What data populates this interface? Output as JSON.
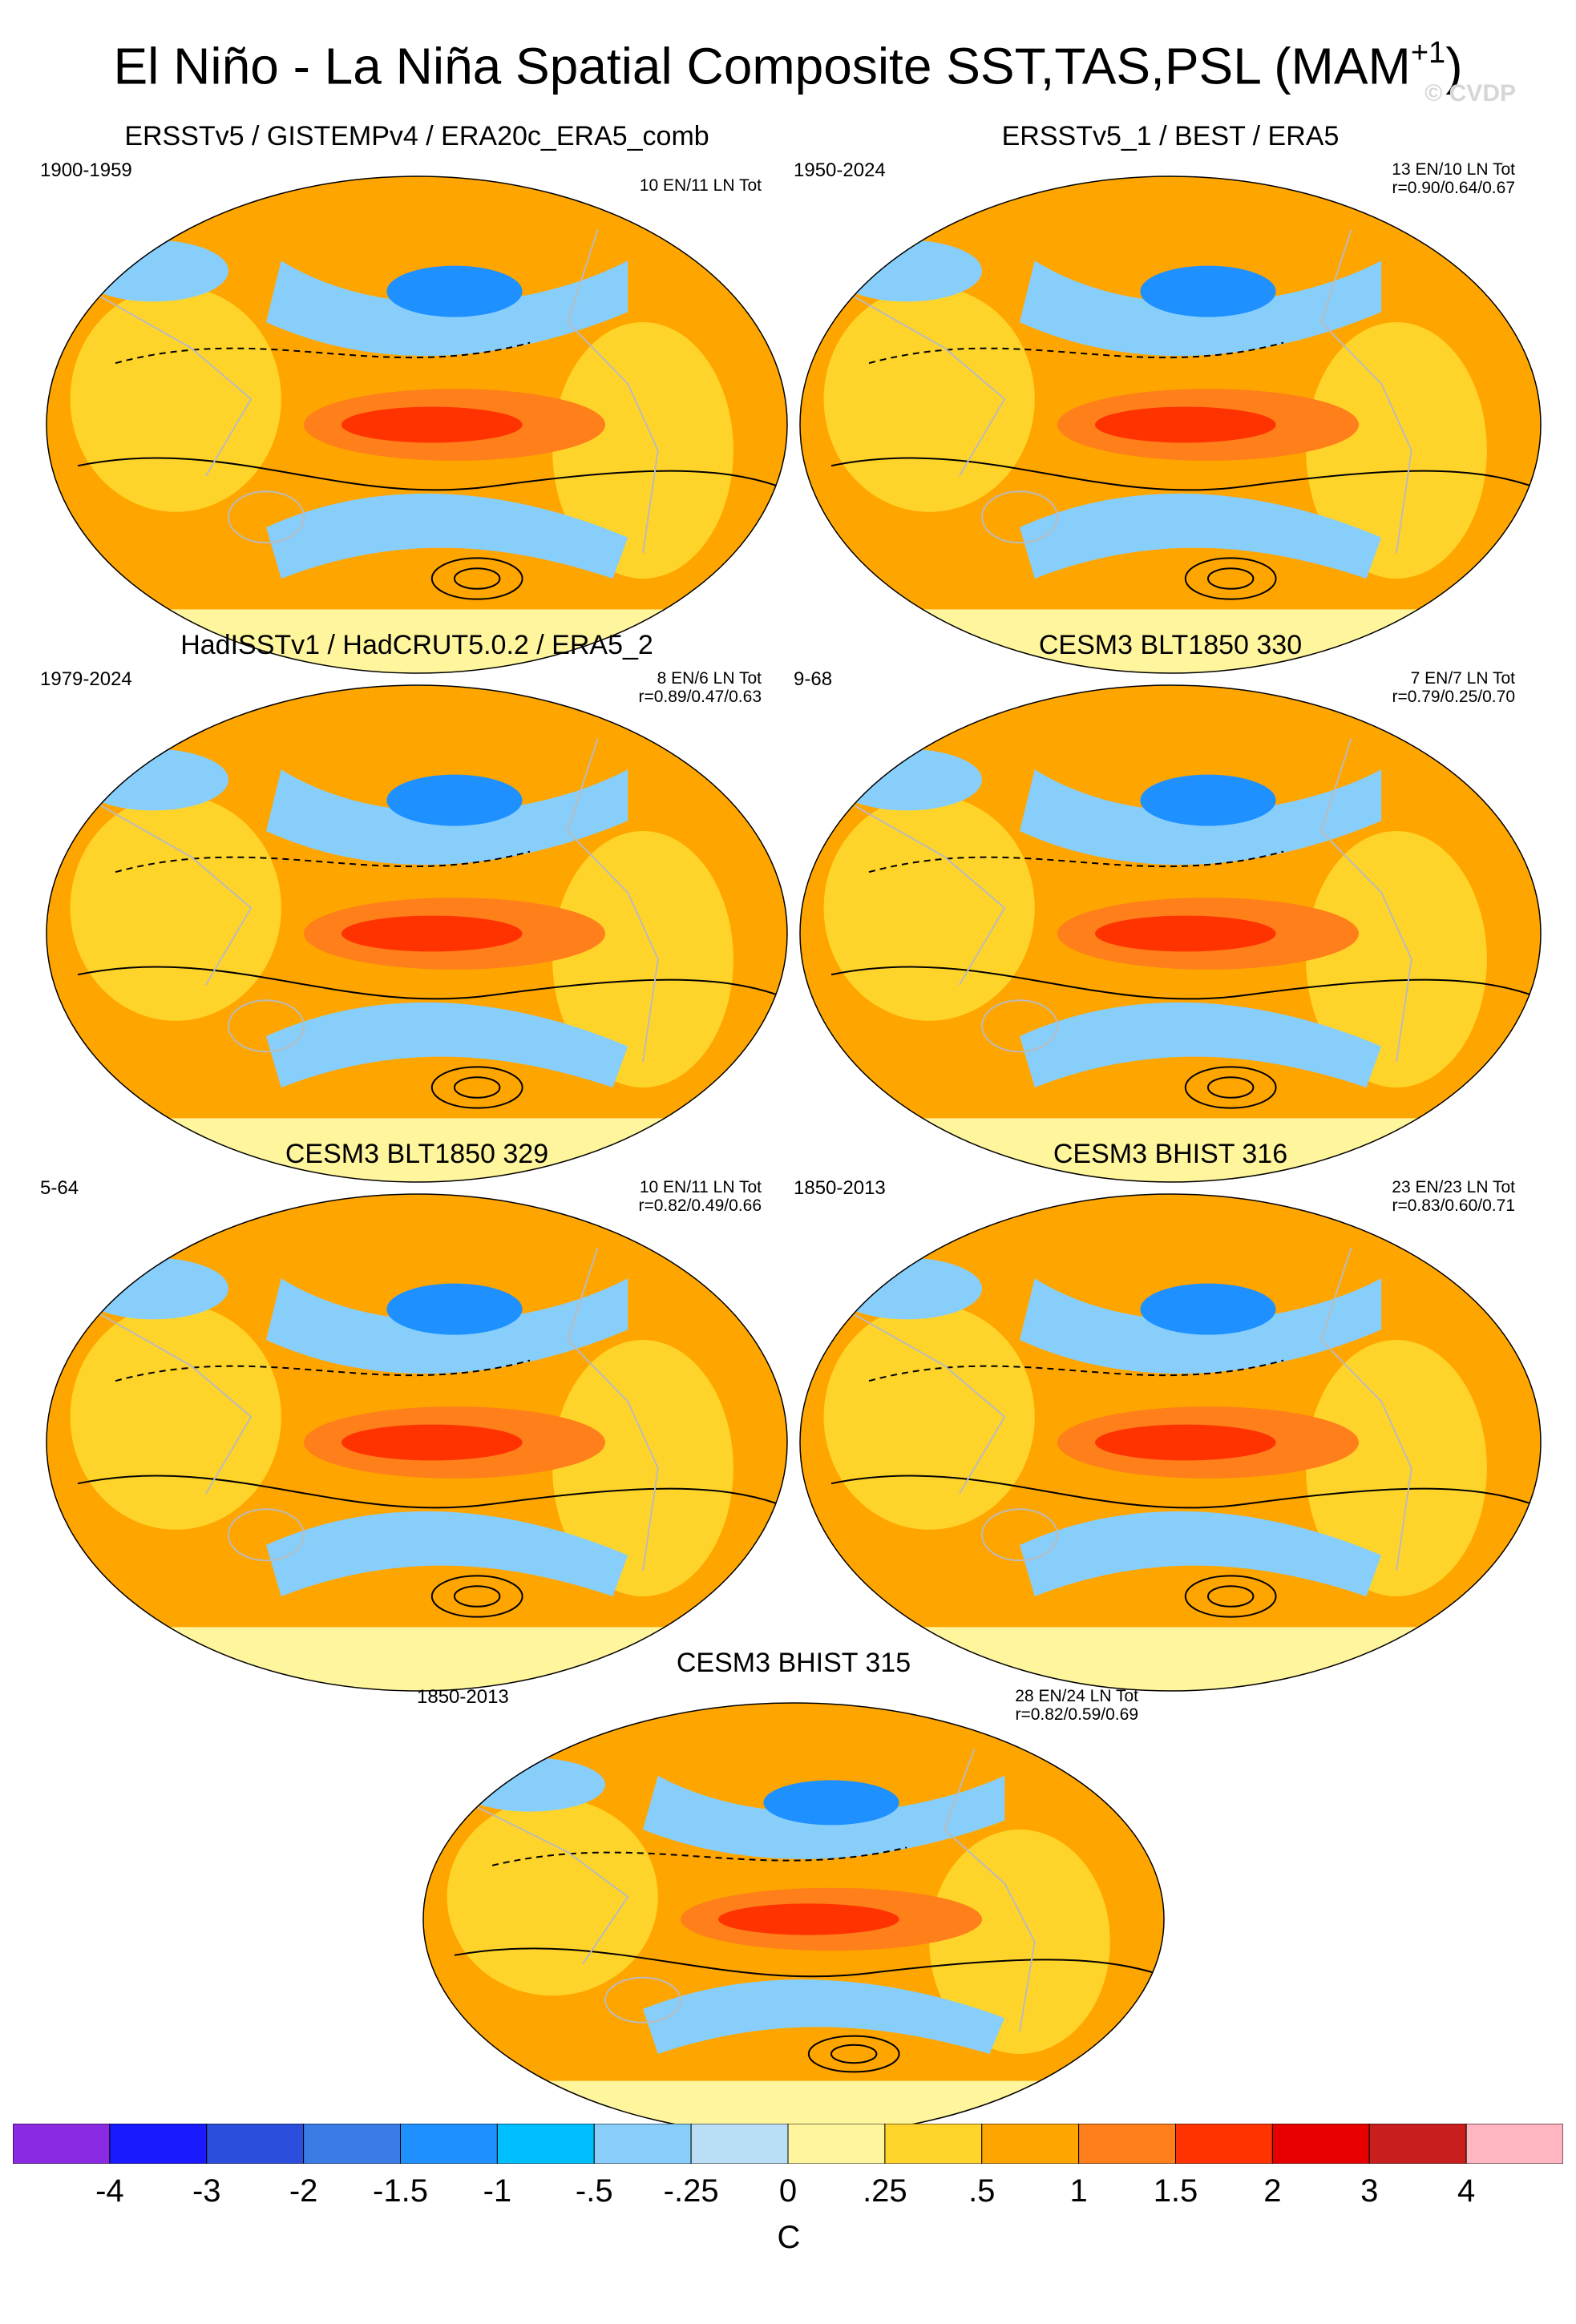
{
  "title": {
    "main": "El Niño - La Niña Spatial Composite SST,TAS,PSL (MAM",
    "superscript": "+1",
    "close": ")"
  },
  "watermark": "© CVDP",
  "panels": [
    {
      "title": "ERSSTv5 / GISTEMPv4 / ERA20c_ERA5_comb",
      "period": "1900-1959",
      "counts": "10 EN/11 LN Tot",
      "corr": ""
    },
    {
      "title": "ERSSTv5_1 / BEST / ERA5",
      "period": "1950-2024",
      "counts": "13 EN/10 LN Tot",
      "corr": "r=0.90/0.64/0.67"
    },
    {
      "title": "HadISSTv1 / HadCRUT5.0.2 / ERA5_2",
      "period": "1979-2024",
      "counts": "8 EN/6 LN Tot",
      "corr": "r=0.89/0.47/0.63"
    },
    {
      "title": "CESM3 BLT1850 330",
      "period": "9-68",
      "counts": "7 EN/7 LN Tot",
      "corr": "r=0.79/0.25/0.70"
    },
    {
      "title": "CESM3 BLT1850 329",
      "period": "5-64",
      "counts": "10 EN/11 LN Tot",
      "corr": "r=0.82/0.49/0.66"
    },
    {
      "title": "CESM3 BHIST 316",
      "period": "1850-2013",
      "counts": "23 EN/23 LN Tot",
      "corr": "r=0.83/0.60/0.71"
    },
    {
      "title": "CESM3 BHIST 315",
      "period": "1850-2013",
      "counts": "28 EN/24 LN Tot",
      "corr": "r=0.82/0.59/0.69"
    }
  ],
  "colorbar": {
    "labels": [
      "-4",
      "-3",
      "-2",
      "-1.5",
      "-1",
      "-.5",
      "-.25",
      "0",
      ".25",
      ".5",
      "1",
      "1.5",
      "2",
      "3",
      "4"
    ],
    "colors": [
      "#8a2be2",
      "#1a1aff",
      "#2b4fdc",
      "#3b7be6",
      "#1e90ff",
      "#00bfff",
      "#87cefa",
      "#b9def5",
      "#fff59d",
      "#ffd42a",
      "#ffa500",
      "#ff7f1a",
      "#ff3300",
      "#e60000",
      "#c81e1e",
      "#ffb6c1"
    ],
    "unit": "C"
  },
  "palette": {
    "ocean_warm": "#ffa500",
    "ocean_hot": "#ff3300",
    "ocean_cool": "#87cefa",
    "ocean_cold": "#1e90ff",
    "land_outline": "#bbbbbb"
  }
}
